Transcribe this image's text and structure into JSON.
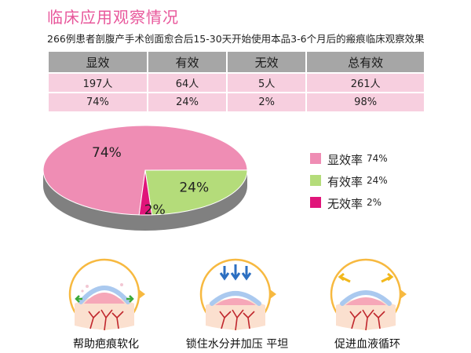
{
  "header": {
    "title": "临床应用观察情况",
    "subtitle": "266例患者剖腹产手术创面愈合后15-30天开始使用本品3-6个月后的瘢痕临床观察效果"
  },
  "table": {
    "headers": [
      "显效",
      "有效",
      "无效",
      "总有效"
    ],
    "rows": [
      [
        "197人",
        "64人",
        "5人",
        "261人"
      ],
      [
        "74%",
        "24%",
        "2%",
        "98%"
      ]
    ]
  },
  "legend": {
    "items": [
      {
        "label": "显效率",
        "value": "74%",
        "color": "#ef8db4"
      },
      {
        "label": "有效率",
        "value": "24%",
        "color": "#b4dc7a"
      },
      {
        "label": "无效率",
        "value": "2%",
        "color": "#e0157a"
      }
    ]
  },
  "chart_data": {
    "type": "pie",
    "title": "",
    "slices": [
      {
        "label": "显效率",
        "value": 74,
        "display": "74%",
        "color": "#ef8db4"
      },
      {
        "label": "有效率",
        "value": 24,
        "display": "24%",
        "color": "#b4dc7a"
      },
      {
        "label": "无效率",
        "value": 2,
        "display": "2%",
        "color": "#e0157a"
      }
    ],
    "legend": "right"
  },
  "benefits": [
    {
      "label": "帮助疤痕软化",
      "icon": "scar-softening-icon"
    },
    {
      "label": "锁住水分并加压 平坦",
      "icon": "moisture-pressure-icon"
    },
    {
      "label": "促进血液循环",
      "icon": "blood-circulation-icon"
    }
  ],
  "colors": {
    "accent": "#e8579b",
    "table_header": "#a6a6a6",
    "table_cell": "#f7cfdf",
    "pie_side": "#808080",
    "icon_ring": "#f7b940"
  }
}
